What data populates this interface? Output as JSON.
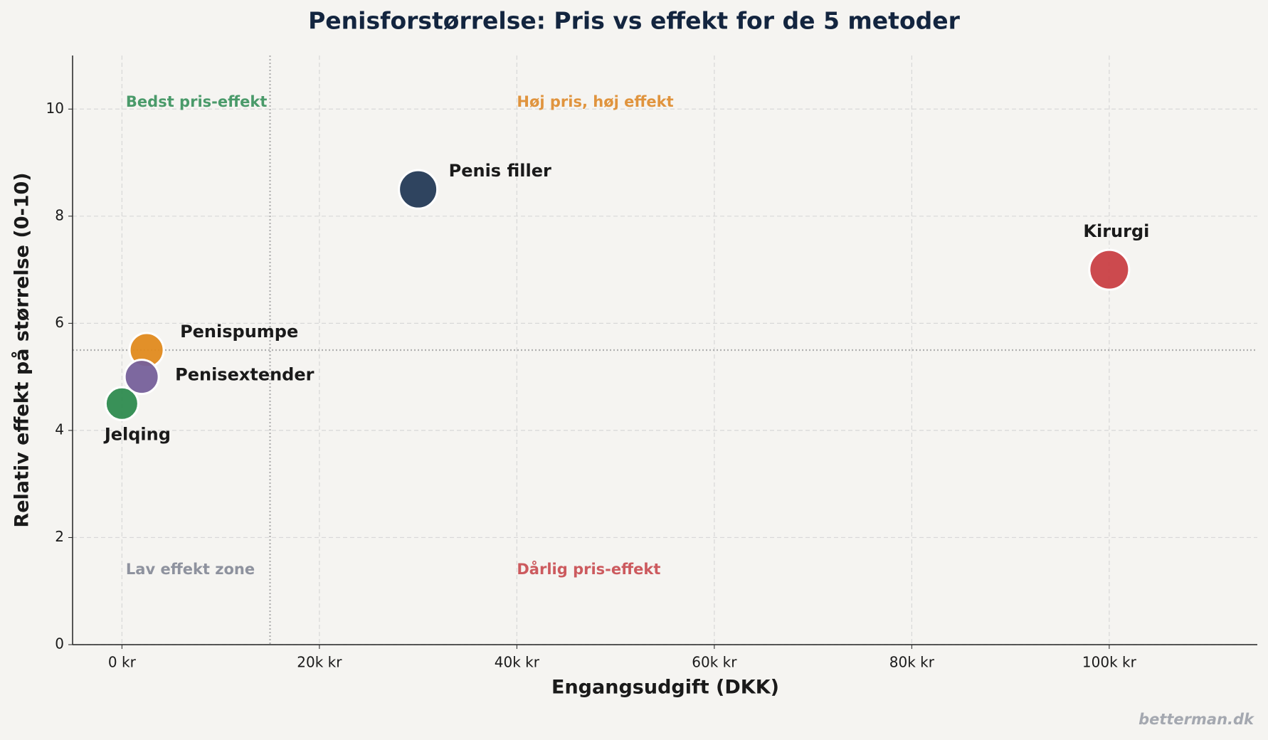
{
  "chart_data": {
    "type": "scatter",
    "title": "Penisforstørrelse: Pris vs effekt for de 5 metoder",
    "x_label": "Engangsudgift (DKK)",
    "y_label": "Relativ effekt på størrelse (0-10)",
    "series": [
      {
        "name": "Jelqing",
        "color": "#2e8b4f",
        "x": [
          0
        ],
        "values": [
          4.5
        ]
      },
      {
        "name": "Penispumpe",
        "color": "#e08a1e",
        "x": [
          2500
        ],
        "values": [
          5.5
        ]
      },
      {
        "name": "Penisextender",
        "color": "#76609a",
        "x": [
          2000
        ],
        "values": [
          5.0
        ]
      },
      {
        "name": "Penis filler",
        "color": "#243a56",
        "x": [
          30000
        ],
        "values": [
          8.5
        ]
      },
      {
        "name": "Kirurgi",
        "color": "#c94045",
        "x": [
          100000
        ],
        "values": [
          7.0
        ]
      }
    ],
    "xlim": [
      -5000,
      115000
    ],
    "ylim": [
      0,
      11
    ],
    "xticks": [
      {
        "value": 0,
        "label": "0 kr"
      },
      {
        "value": 20000,
        "label": "20k kr"
      },
      {
        "value": 40000,
        "label": "40k kr"
      },
      {
        "value": 60000,
        "label": "60k kr"
      },
      {
        "value": 80000,
        "label": "80k kr"
      },
      {
        "value": 100000,
        "label": "100k kr"
      }
    ],
    "yticks": [
      0,
      2,
      4,
      6,
      8,
      10
    ],
    "grid": true,
    "reference_x": 15000,
    "reference_y": 5.5,
    "annotations": [
      {
        "text": "Bedst pris-effekt",
        "color": "#4a9a6a"
      },
      {
        "text": "Høj pris, høj effekt",
        "color": "#e0943e"
      },
      {
        "text": "Lav effekt zone",
        "color": "#8e929e"
      },
      {
        "text": "Dårlig pris-effekt",
        "color": "#cc5a5e"
      }
    ],
    "watermark": "betterman.dk"
  }
}
